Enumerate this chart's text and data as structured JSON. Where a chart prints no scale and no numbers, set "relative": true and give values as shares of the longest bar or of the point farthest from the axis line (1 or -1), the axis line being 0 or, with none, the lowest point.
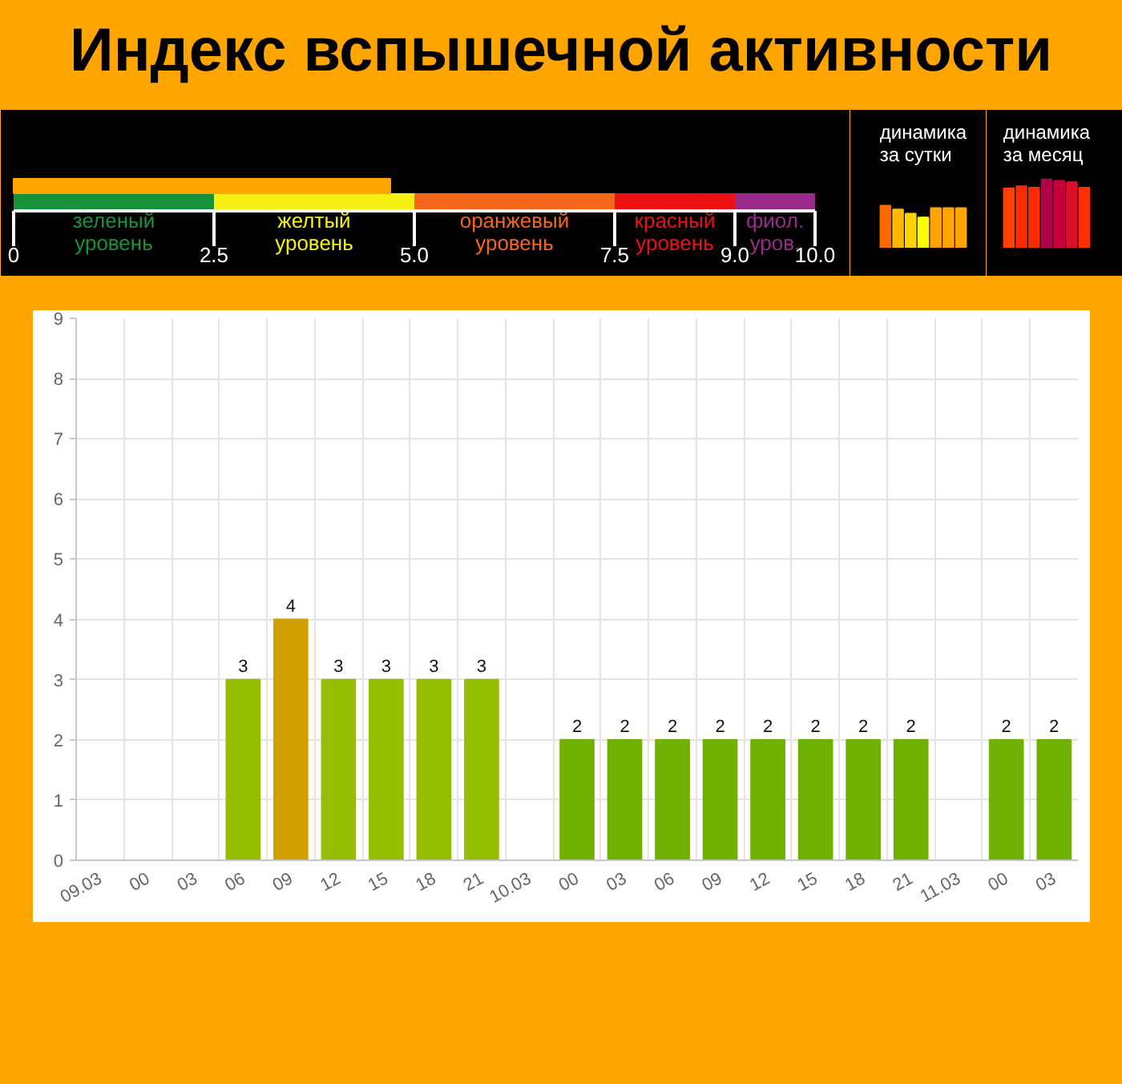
{
  "chart_data": [
    {
      "type": "bar",
      "title": "Индекс вспышечной активности",
      "orientation": "horizontal",
      "categories": [
        null
      ],
      "values": [
        4.7
      ],
      "color": "#ffa500",
      "xlim": [
        0,
        10
      ],
      "xticks": [
        0,
        2.5,
        {
          "value": 5,
          "label": "5.0"
        },
        7.5,
        {
          "value": 9,
          "label": "9.0"
        },
        {
          "value": 10,
          "label": "10.0"
        }
      ],
      "bands": [
        {
          "axis": "x",
          "from": 0,
          "to": 2.5,
          "label": "зеленый\nуровень",
          "color": "#17923a"
        },
        {
          "axis": "x",
          "from": 2.5,
          "to": 5,
          "label": "желтый\nуровень",
          "color": "#f5ef14"
        },
        {
          "axis": "x",
          "from": 5,
          "to": 7.5,
          "label": "оранжевый\nуровень",
          "color": "#f5661a"
        },
        {
          "axis": "x",
          "from": 7.5,
          "to": 9,
          "label": "красный\nуровень",
          "color": "#ee1111"
        },
        {
          "axis": "x",
          "from": 9,
          "to": 10,
          "label": "фиол.\nуров.",
          "color": "#9a2a8a"
        }
      ]
    },
    {
      "type": "bar",
      "title": "динамика\nза сутки",
      "categories": [
        null,
        null,
        null,
        null,
        null,
        null,
        null
      ],
      "values": [
        1,
        0.91,
        0.81,
        0.72,
        0.94,
        0.94,
        0.94
      ],
      "colors": [
        "#ff6a00",
        "#ffb800",
        "#ffd200",
        "#ffff00",
        "#ffa500",
        "#ffa500",
        "#ffa500"
      ],
      "relative": true
    },
    {
      "type": "bar",
      "title": "динамика\nза месяц",
      "categories": [
        null,
        null,
        null,
        null,
        null,
        null,
        null
      ],
      "values": [
        0.87,
        0.9,
        0.88,
        1,
        0.98,
        0.96,
        0.88
      ],
      "colors": [
        "#ff4000",
        "#ff2a00",
        "#ff2a00",
        "#b0004a",
        "#c8003c",
        "#dc102a",
        "#ff3000"
      ],
      "relative": true
    },
    {
      "type": "bar",
      "categories": [
        "09.03",
        "00",
        "03",
        "06",
        "09",
        "12",
        "15",
        "18",
        "21",
        "10.03",
        "00",
        "03",
        "06",
        "09",
        "12",
        "15",
        "18",
        "21",
        "11.03",
        "00",
        "03"
      ],
      "values": [
        0,
        0,
        0,
        3,
        4,
        3,
        3,
        3,
        3,
        0,
        2,
        2,
        2,
        2,
        2,
        2,
        2,
        2,
        0,
        2,
        2
      ],
      "colors": [
        "#008000",
        "#008000",
        "#008000",
        "#96be00",
        "#d0a000",
        "#96be00",
        "#96be00",
        "#96be00",
        "#96be00",
        "#008000",
        "#70b000",
        "#70b000",
        "#70b000",
        "#70b000",
        "#70b000",
        "#70b000",
        "#70b000",
        "#70b000",
        "#008000",
        "#70b000",
        "#70b000"
      ],
      "value_labels": [
        null,
        null,
        null,
        "3",
        "4",
        "3",
        "3",
        "3",
        "3",
        null,
        "2",
        "2",
        "2",
        "2",
        "2",
        "2",
        "2",
        "2",
        null,
        "2",
        "2"
      ],
      "ylim": [
        0,
        9
      ],
      "yticks": [
        0,
        1,
        2,
        3,
        4,
        5,
        6,
        7,
        8,
        9
      ],
      "grid": true
    }
  ]
}
